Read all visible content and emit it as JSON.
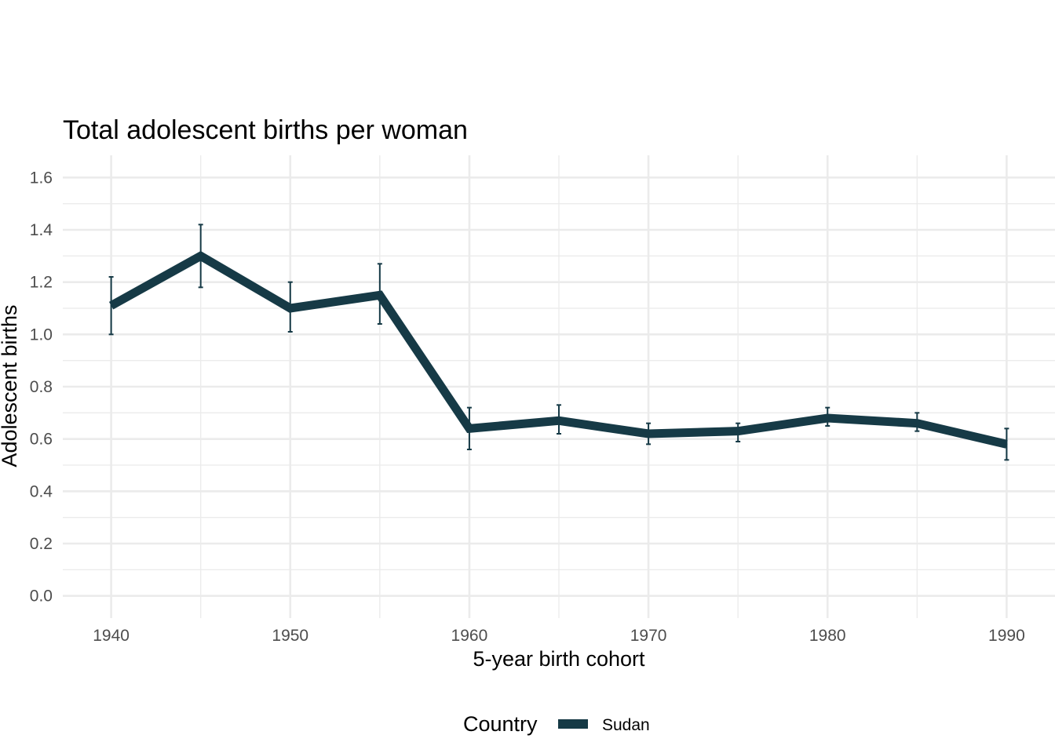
{
  "chart_data": {
    "type": "line",
    "title": "Total adolescent births per woman",
    "xlabel": "5-year birth cohort",
    "ylabel": "Adolescent births",
    "x": [
      1940,
      1945,
      1950,
      1955,
      1960,
      1965,
      1970,
      1975,
      1980,
      1985,
      1990
    ],
    "xlim": [
      1937.3,
      1992.7
    ],
    "ylim": [
      -0.085,
      1.685
    ],
    "x_ticks": [
      1940,
      1950,
      1960,
      1970,
      1980,
      1990
    ],
    "x_tick_labels": [
      "1940",
      "1950",
      "1960",
      "1970",
      "1980",
      "1990"
    ],
    "y_ticks": [
      0.0,
      0.2,
      0.4,
      0.6,
      0.8,
      1.0,
      1.2,
      1.4,
      1.6
    ],
    "y_tick_labels": [
      "0.0",
      "0.2",
      "0.4",
      "0.6",
      "0.8",
      "1.0",
      "1.2",
      "1.4",
      "1.6"
    ],
    "grid": true,
    "series": [
      {
        "name": "Sudan",
        "color": "#163a46",
        "values": [
          1.11,
          1.3,
          1.1,
          1.15,
          0.64,
          0.67,
          0.62,
          0.63,
          0.68,
          0.66,
          0.58
        ],
        "lower": [
          1.0,
          1.18,
          1.01,
          1.04,
          0.56,
          0.62,
          0.58,
          0.59,
          0.65,
          0.63,
          0.52
        ],
        "upper": [
          1.22,
          1.42,
          1.2,
          1.27,
          0.72,
          0.73,
          0.66,
          0.66,
          0.72,
          0.7,
          0.64
        ]
      }
    ],
    "legend": {
      "title": "Country",
      "placement": "bottom",
      "entries": [
        "Sudan"
      ]
    }
  }
}
